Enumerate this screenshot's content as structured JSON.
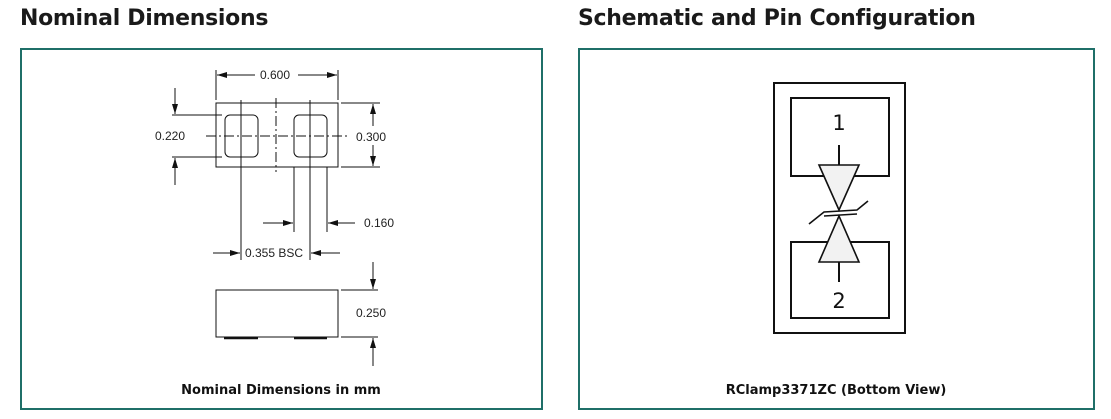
{
  "left_panel": {
    "title": "Nominal Dimensions",
    "caption": "Nominal Dimensions in mm",
    "dimensions": {
      "width": "0.600",
      "pad_height": "0.220",
      "height": "0.300",
      "pad_width": "0.160",
      "pitch": "0.355 BSC",
      "thickness": "0.250"
    }
  },
  "right_panel": {
    "title": "Schematic and Pin Configuration",
    "caption": "RClamp3371ZC (Bottom View)",
    "pin1": "1",
    "pin2": "2"
  },
  "colors": {
    "border": "#1f6f68"
  }
}
